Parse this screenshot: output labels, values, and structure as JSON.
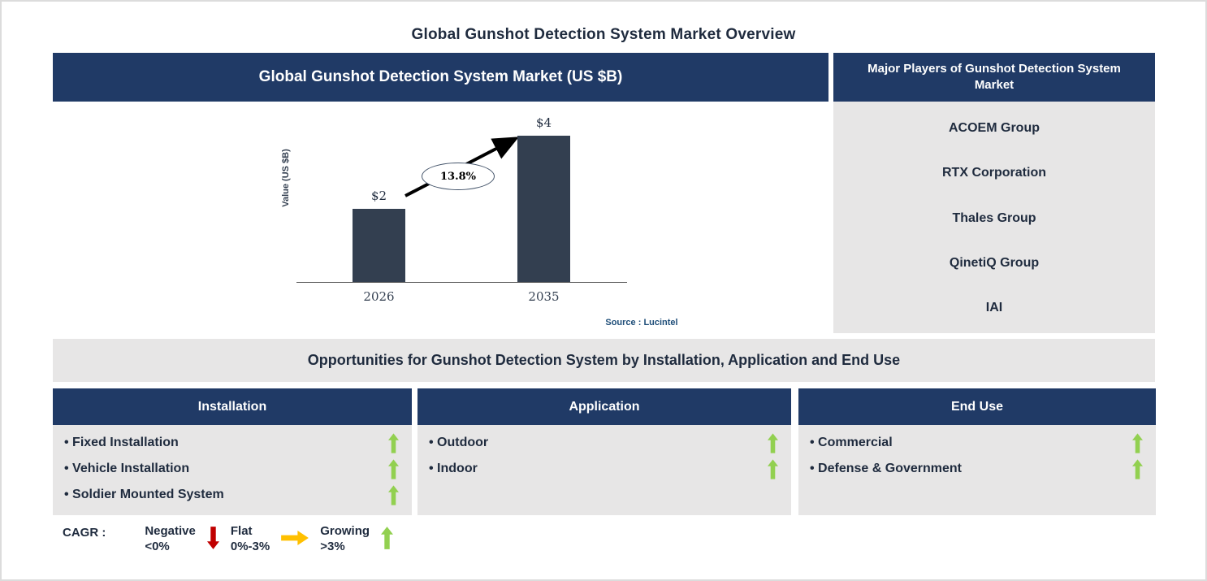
{
  "page_title": "Global Gunshot Detection System Market Overview",
  "colors": {
    "navy": "#203A66",
    "bar_slate": "#333F50",
    "panel_gray": "#E7E6E6",
    "text_dark": "#1F2B3E",
    "green": "#92D050",
    "red": "#C00000",
    "yellow": "#FFC000",
    "source_blue": "#1F4E79"
  },
  "chart_data": {
    "type": "bar",
    "title": "Global Gunshot Detection System Market (US $B)",
    "categories": [
      "2026",
      "2035"
    ],
    "values": [
      2,
      4
    ],
    "value_labels": [
      "$2",
      "$4"
    ],
    "ylabel": "Value (US $B)",
    "ylim": [
      0,
      4.5
    ],
    "grid": false,
    "bar_color": "#333F50",
    "cagr_label": "13.8%",
    "annotation": "CAGR 13.8% growth arrow from 2026 bar to 2035 bar",
    "source": "Source : Lucintel"
  },
  "market_panel": {
    "header": "Global Gunshot Detection System Market (US $B)"
  },
  "players": {
    "header": "Major Players of Gunshot Detection System Market",
    "items": [
      "ACOEM Group",
      "RTX Corporation",
      "Thales Group",
      "QinetiQ Group",
      "IAI"
    ]
  },
  "opportunities": {
    "title": "Opportunities for Gunshot Detection System by Installation, Application and End Use",
    "columns": [
      {
        "header": "Installation",
        "items": [
          {
            "label": "Fixed Installation",
            "trend": "growing"
          },
          {
            "label": "Vehicle Installation",
            "trend": "growing"
          },
          {
            "label": "Soldier Mounted System",
            "trend": "growing"
          }
        ]
      },
      {
        "header": "Application",
        "items": [
          {
            "label": "Outdoor",
            "trend": "growing"
          },
          {
            "label": "Indoor",
            "trend": "growing"
          }
        ]
      },
      {
        "header": "End Use",
        "items": [
          {
            "label": "Commercial",
            "trend": "growing"
          },
          {
            "label": "Defense & Government",
            "trend": "growing"
          }
        ]
      }
    ]
  },
  "legend": {
    "label": "CAGR :",
    "entries": [
      {
        "name": "Negative",
        "range": "<0%",
        "direction": "down",
        "color": "#C00000"
      },
      {
        "name": "Flat",
        "range": "0%-3%",
        "direction": "right",
        "color": "#FFC000"
      },
      {
        "name": "Growing",
        "range": ">3%",
        "direction": "up",
        "color": "#92D050"
      }
    ]
  }
}
